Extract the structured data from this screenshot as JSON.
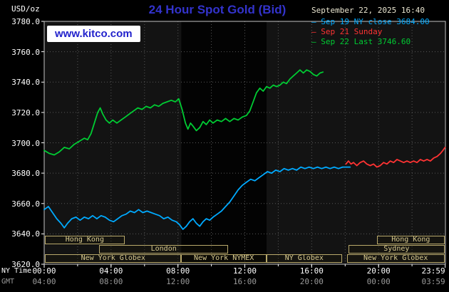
{
  "header": {
    "units": "USD/oz",
    "title": "24 Hour Spot Gold (Bid)",
    "datetime": "September 22, 2025 16:40",
    "watermark": "www.kitco.com"
  },
  "colors": {
    "title": "#3333cc",
    "watermark_text": "#2222cc",
    "date_text": "#e8e4cf",
    "sep19_cyan": "#00aaff",
    "sep21_red": "#ff3333",
    "sep22_green": "#00cc33"
  },
  "legend": [
    {
      "label": "Sep 19 NY close 3684.00",
      "color": "#00aaff"
    },
    {
      "label": "Sep 21 Sunday",
      "color": "#ff3333"
    },
    {
      "label": "Sep 22 Last 3746.60",
      "color": "#00cc33"
    }
  ],
  "axes": {
    "y_ticks": [
      "3780.0",
      "3760.0",
      "3740.0",
      "3720.0",
      "3700.0",
      "3680.0",
      "3660.0",
      "3640.0",
      "3620.0"
    ],
    "x_axis_name_ny": "NY Time",
    "x_axis_name_gmt": "GMT",
    "ny_times": [
      "00:00",
      "04:00",
      "08:00",
      "12:00",
      "16:00",
      "20:00",
      "23:59"
    ],
    "gmt_times": [
      "04:00",
      "08:00",
      "12:00",
      "16:00",
      "20:00",
      "00:00",
      "03:59"
    ]
  },
  "chart_data": {
    "type": "line",
    "title": "24 Hour Spot Gold (Bid)",
    "x_unit": "hour of day (NY time)",
    "xlim": [
      0,
      24
    ],
    "ylim": [
      3620,
      3780
    ],
    "y_gridlines_step": 20,
    "x_gridlines_step": 2,
    "shaded_band_hours": [
      8.2,
      13.3
    ],
    "series": [
      {
        "id": "sep19",
        "name": "Sep 19 NY close 3684.00",
        "color": "#00aaff",
        "points": [
          [
            0,
            3656
          ],
          [
            0.25,
            3658
          ],
          [
            0.5,
            3654
          ],
          [
            0.75,
            3650
          ],
          [
            1.0,
            3647
          ],
          [
            1.2,
            3644
          ],
          [
            1.4,
            3647
          ],
          [
            1.65,
            3650
          ],
          [
            1.9,
            3651
          ],
          [
            2.15,
            3649
          ],
          [
            2.4,
            3651
          ],
          [
            2.65,
            3650
          ],
          [
            2.9,
            3652
          ],
          [
            3.15,
            3650
          ],
          [
            3.4,
            3652
          ],
          [
            3.65,
            3651
          ],
          [
            3.9,
            3649
          ],
          [
            4.15,
            3648
          ],
          [
            4.4,
            3650
          ],
          [
            4.65,
            3652
          ],
          [
            4.9,
            3653
          ],
          [
            5.15,
            3655
          ],
          [
            5.4,
            3654
          ],
          [
            5.65,
            3656
          ],
          [
            5.9,
            3654
          ],
          [
            6.15,
            3655
          ],
          [
            6.4,
            3654
          ],
          [
            6.65,
            3653
          ],
          [
            6.9,
            3652
          ],
          [
            7.15,
            3650
          ],
          [
            7.4,
            3651
          ],
          [
            7.65,
            3649
          ],
          [
            7.9,
            3648
          ],
          [
            8.1,
            3646
          ],
          [
            8.3,
            3643
          ],
          [
            8.5,
            3645
          ],
          [
            8.7,
            3648
          ],
          [
            8.9,
            3650
          ],
          [
            9.1,
            3647
          ],
          [
            9.3,
            3645
          ],
          [
            9.5,
            3648
          ],
          [
            9.7,
            3650
          ],
          [
            9.9,
            3649
          ],
          [
            10.1,
            3651
          ],
          [
            10.35,
            3653
          ],
          [
            10.6,
            3655
          ],
          [
            10.85,
            3658
          ],
          [
            11.1,
            3661
          ],
          [
            11.35,
            3665
          ],
          [
            11.6,
            3669
          ],
          [
            11.85,
            3672
          ],
          [
            12.1,
            3674
          ],
          [
            12.35,
            3676
          ],
          [
            12.6,
            3675
          ],
          [
            12.85,
            3677
          ],
          [
            13.1,
            3679
          ],
          [
            13.35,
            3681
          ],
          [
            13.6,
            3680
          ],
          [
            13.85,
            3682
          ],
          [
            14.1,
            3681
          ],
          [
            14.35,
            3683
          ],
          [
            14.6,
            3682
          ],
          [
            14.85,
            3683
          ],
          [
            15.1,
            3682
          ],
          [
            15.35,
            3684
          ],
          [
            15.6,
            3683
          ],
          [
            15.85,
            3684
          ],
          [
            16.1,
            3683
          ],
          [
            16.35,
            3684
          ],
          [
            16.6,
            3683
          ],
          [
            16.85,
            3684
          ],
          [
            17.1,
            3683
          ],
          [
            17.35,
            3684
          ],
          [
            17.6,
            3683
          ],
          [
            17.85,
            3684
          ],
          [
            18.1,
            3684
          ],
          [
            18.3,
            3684
          ]
        ]
      },
      {
        "id": "sep21",
        "name": "Sep 21 Sunday",
        "color": "#ff3333",
        "points": [
          [
            18.05,
            3686
          ],
          [
            18.2,
            3688
          ],
          [
            18.35,
            3686
          ],
          [
            18.5,
            3687
          ],
          [
            18.7,
            3685
          ],
          [
            18.9,
            3687
          ],
          [
            19.1,
            3688
          ],
          [
            19.3,
            3686
          ],
          [
            19.5,
            3685
          ],
          [
            19.7,
            3686
          ],
          [
            19.9,
            3684
          ],
          [
            20.1,
            3685
          ],
          [
            20.3,
            3687
          ],
          [
            20.5,
            3686
          ],
          [
            20.7,
            3688
          ],
          [
            20.9,
            3687
          ],
          [
            21.1,
            3689
          ],
          [
            21.3,
            3688
          ],
          [
            21.5,
            3687
          ],
          [
            21.7,
            3688
          ],
          [
            21.9,
            3687
          ],
          [
            22.1,
            3688
          ],
          [
            22.3,
            3687
          ],
          [
            22.5,
            3689
          ],
          [
            22.7,
            3688
          ],
          [
            22.9,
            3689
          ],
          [
            23.1,
            3688
          ],
          [
            23.3,
            3690
          ],
          [
            23.5,
            3691
          ],
          [
            23.7,
            3693
          ],
          [
            23.85,
            3695
          ],
          [
            23.98,
            3697
          ]
        ]
      },
      {
        "id": "sep22",
        "name": "Sep 22 Last 3746.60",
        "color": "#00cc33",
        "points": [
          [
            0,
            3695
          ],
          [
            0.3,
            3693
          ],
          [
            0.6,
            3692
          ],
          [
            0.9,
            3694
          ],
          [
            1.2,
            3697
          ],
          [
            1.5,
            3696
          ],
          [
            1.8,
            3699
          ],
          [
            2.1,
            3701
          ],
          [
            2.4,
            3703
          ],
          [
            2.6,
            3702
          ],
          [
            2.8,
            3706
          ],
          [
            3.0,
            3713
          ],
          [
            3.2,
            3720
          ],
          [
            3.35,
            3723
          ],
          [
            3.5,
            3719
          ],
          [
            3.7,
            3715
          ],
          [
            3.9,
            3713
          ],
          [
            4.1,
            3715
          ],
          [
            4.35,
            3713
          ],
          [
            4.6,
            3715
          ],
          [
            4.85,
            3717
          ],
          [
            5.1,
            3719
          ],
          [
            5.35,
            3721
          ],
          [
            5.6,
            3723
          ],
          [
            5.85,
            3722
          ],
          [
            6.1,
            3724
          ],
          [
            6.35,
            3723
          ],
          [
            6.6,
            3725
          ],
          [
            6.85,
            3724
          ],
          [
            7.1,
            3726
          ],
          [
            7.35,
            3727
          ],
          [
            7.6,
            3728
          ],
          [
            7.85,
            3727
          ],
          [
            8.05,
            3729
          ],
          [
            8.25,
            3722
          ],
          [
            8.45,
            3713
          ],
          [
            8.6,
            3709
          ],
          [
            8.75,
            3713
          ],
          [
            8.9,
            3711
          ],
          [
            9.1,
            3708
          ],
          [
            9.3,
            3710
          ],
          [
            9.5,
            3714
          ],
          [
            9.7,
            3712
          ],
          [
            9.9,
            3715
          ],
          [
            10.1,
            3713
          ],
          [
            10.35,
            3715
          ],
          [
            10.6,
            3714
          ],
          [
            10.85,
            3716
          ],
          [
            11.1,
            3714
          ],
          [
            11.35,
            3716
          ],
          [
            11.6,
            3715
          ],
          [
            11.85,
            3717
          ],
          [
            12.1,
            3718
          ],
          [
            12.3,
            3721
          ],
          [
            12.5,
            3727
          ],
          [
            12.7,
            3733
          ],
          [
            12.9,
            3736
          ],
          [
            13.1,
            3734
          ],
          [
            13.3,
            3737
          ],
          [
            13.5,
            3736
          ],
          [
            13.7,
            3738
          ],
          [
            13.9,
            3737
          ],
          [
            14.1,
            3738
          ],
          [
            14.3,
            3740
          ],
          [
            14.5,
            3739
          ],
          [
            14.7,
            3742
          ],
          [
            14.9,
            3744
          ],
          [
            15.1,
            3746
          ],
          [
            15.3,
            3748
          ],
          [
            15.5,
            3746
          ],
          [
            15.7,
            3748
          ],
          [
            15.9,
            3747
          ],
          [
            16.1,
            3745
          ],
          [
            16.3,
            3744
          ],
          [
            16.5,
            3746
          ],
          [
            16.67,
            3746.6
          ]
        ]
      }
    ],
    "sessions": [
      {
        "label": "Hong Kong",
        "row": 0,
        "start": 0.05,
        "end": 4.8
      },
      {
        "label": "Hong Kong",
        "row": 0,
        "start": 19.9,
        "end": 23.95
      },
      {
        "label": "London",
        "row": 1,
        "start": 3.3,
        "end": 11.0
      },
      {
        "label": "Sydney",
        "row": 1,
        "start": 18.2,
        "end": 23.95
      },
      {
        "label": "New York Globex",
        "row": 2,
        "start": 0.05,
        "end": 8.2
      },
      {
        "label": "New York NYMEX",
        "row": 2,
        "start": 8.2,
        "end": 13.3
      },
      {
        "label": "NY Globex",
        "row": 2,
        "start": 13.3,
        "end": 17.8
      },
      {
        "label": "New York Globex",
        "row": 2,
        "start": 18.1,
        "end": 23.95
      }
    ]
  }
}
